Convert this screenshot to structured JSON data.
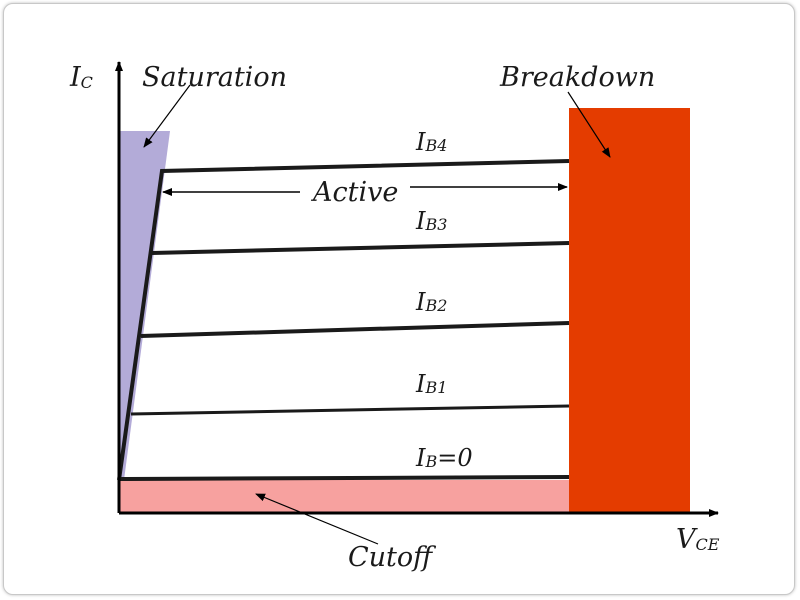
{
  "axes": {
    "y_label": "I",
    "y_subscript": "C",
    "x_label": "V",
    "x_subscript": "CE"
  },
  "regions": {
    "saturation": {
      "label": "Saturation",
      "color": "#b3abd8"
    },
    "breakdown": {
      "label": "Breakdown",
      "color": "#e43c00"
    },
    "cutoff": {
      "label": "Cutoff",
      "color": "#f7a19f"
    },
    "active": {
      "label": "Active"
    }
  },
  "curves": [
    {
      "prefix": "I",
      "subscript": "B4",
      "suffix": ""
    },
    {
      "prefix": "I",
      "subscript": "B3",
      "suffix": ""
    },
    {
      "prefix": "I",
      "subscript": "B2",
      "suffix": ""
    },
    {
      "prefix": "I",
      "subscript": "B1",
      "suffix": ""
    },
    {
      "prefix": "I",
      "subscript": "B",
      "suffix": "=0"
    }
  ]
}
